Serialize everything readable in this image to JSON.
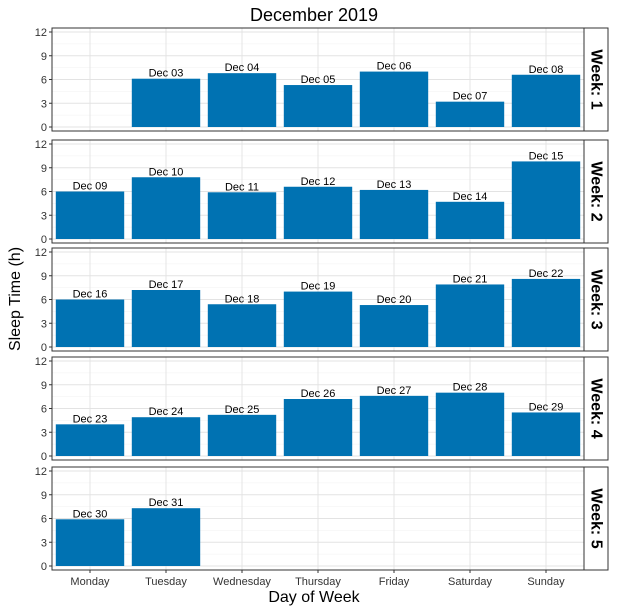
{
  "chart_data": {
    "type": "bar",
    "title": "December 2019",
    "xlabel": "Day of Week",
    "ylabel": "Sleep Time (h)",
    "categories": [
      "Monday",
      "Tuesday",
      "Wednesday",
      "Thursday",
      "Friday",
      "Saturday",
      "Sunday"
    ],
    "ylim": [
      0,
      12
    ],
    "yticks": [
      0,
      3,
      6,
      9,
      12
    ],
    "grid": true,
    "bar_color": "#0072b2",
    "facets": [
      {
        "label": "Week: 1",
        "bars": [
          {
            "day": "Tuesday",
            "label": "Dec 03",
            "value": 6.1
          },
          {
            "day": "Wednesday",
            "label": "Dec 04",
            "value": 6.8
          },
          {
            "day": "Thursday",
            "label": "Dec 05",
            "value": 5.3
          },
          {
            "day": "Friday",
            "label": "Dec 06",
            "value": 7.0
          },
          {
            "day": "Saturday",
            "label": "Dec 07",
            "value": 3.2
          },
          {
            "day": "Sunday",
            "label": "Dec 08",
            "value": 6.6
          }
        ]
      },
      {
        "label": "Week: 2",
        "bars": [
          {
            "day": "Monday",
            "label": "Dec 09",
            "value": 6.0
          },
          {
            "day": "Tuesday",
            "label": "Dec 10",
            "value": 7.8
          },
          {
            "day": "Wednesday",
            "label": "Dec 11",
            "value": 5.9
          },
          {
            "day": "Thursday",
            "label": "Dec 12",
            "value": 6.6
          },
          {
            "day": "Friday",
            "label": "Dec 13",
            "value": 6.2
          },
          {
            "day": "Saturday",
            "label": "Dec 14",
            "value": 4.7
          },
          {
            "day": "Sunday",
            "label": "Dec 15",
            "value": 9.8
          }
        ]
      },
      {
        "label": "Week: 3",
        "bars": [
          {
            "day": "Monday",
            "label": "Dec 16",
            "value": 6.0
          },
          {
            "day": "Tuesday",
            "label": "Dec 17",
            "value": 7.2
          },
          {
            "day": "Wednesday",
            "label": "Dec 18",
            "value": 5.4
          },
          {
            "day": "Thursday",
            "label": "Dec 19",
            "value": 7.0
          },
          {
            "day": "Friday",
            "label": "Dec 20",
            "value": 5.3
          },
          {
            "day": "Saturday",
            "label": "Dec 21",
            "value": 7.9
          },
          {
            "day": "Sunday",
            "label": "Dec 22",
            "value": 8.6
          }
        ]
      },
      {
        "label": "Week: 4",
        "bars": [
          {
            "day": "Monday",
            "label": "Dec 23",
            "value": 4.0
          },
          {
            "day": "Tuesday",
            "label": "Dec 24",
            "value": 4.9
          },
          {
            "day": "Wednesday",
            "label": "Dec 25",
            "value": 5.2
          },
          {
            "day": "Thursday",
            "label": "Dec 26",
            "value": 7.2
          },
          {
            "day": "Friday",
            "label": "Dec 27",
            "value": 7.6
          },
          {
            "day": "Saturday",
            "label": "Dec 28",
            "value": 8.0
          },
          {
            "day": "Sunday",
            "label": "Dec 29",
            "value": 5.5
          }
        ]
      },
      {
        "label": "Week: 5",
        "bars": [
          {
            "day": "Monday",
            "label": "Dec 30",
            "value": 5.9
          },
          {
            "day": "Tuesday",
            "label": "Dec 31",
            "value": 7.3
          }
        ]
      }
    ]
  }
}
